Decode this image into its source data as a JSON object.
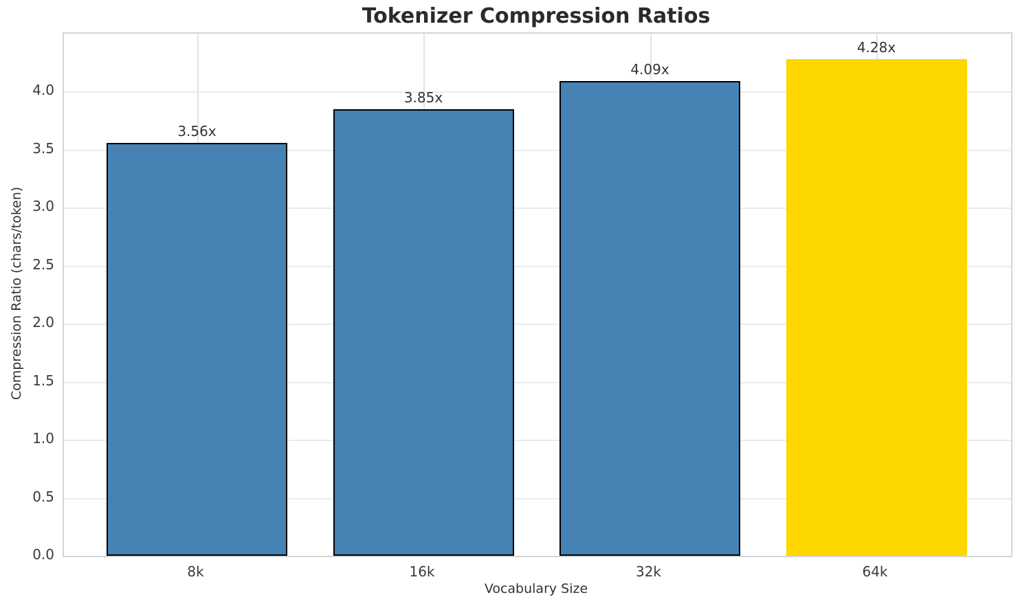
{
  "title": "Tokenizer Compression Ratios",
  "colors": {
    "bar_default": "#4682B4",
    "bar_highlight": "#FFD700",
    "bar_edge": "#000000",
    "grid": "#ebebeb",
    "spine": "#d4d4d4",
    "text": "#333333",
    "title_text": "#2b2b2b"
  },
  "chart_data": {
    "type": "bar",
    "title": "Tokenizer Compression Ratios",
    "xlabel": "Vocabulary Size",
    "ylabel": "Compression Ratio (chars/token)",
    "categories": [
      "8k",
      "16k",
      "32k",
      "64k"
    ],
    "values": [
      3.56,
      3.85,
      4.09,
      4.28
    ],
    "bar_labels": [
      "3.56x",
      "3.85x",
      "4.09x",
      "4.28x"
    ],
    "bar_colors": [
      "#4682B4",
      "#4682B4",
      "#4682B4",
      "#FFD700"
    ],
    "bar_edge_colors": [
      "#000000",
      "#000000",
      "#000000",
      "none"
    ],
    "ylim": [
      0,
      4.5
    ],
    "yticks": [
      0.0,
      0.5,
      1.0,
      1.5,
      2.0,
      2.5,
      3.0,
      3.5,
      4.0
    ],
    "ytick_labels": [
      "0.0",
      "0.5",
      "1.0",
      "1.5",
      "2.0",
      "2.5",
      "3.0",
      "3.5",
      "4.0"
    ],
    "grid": true,
    "legend": "none"
  }
}
